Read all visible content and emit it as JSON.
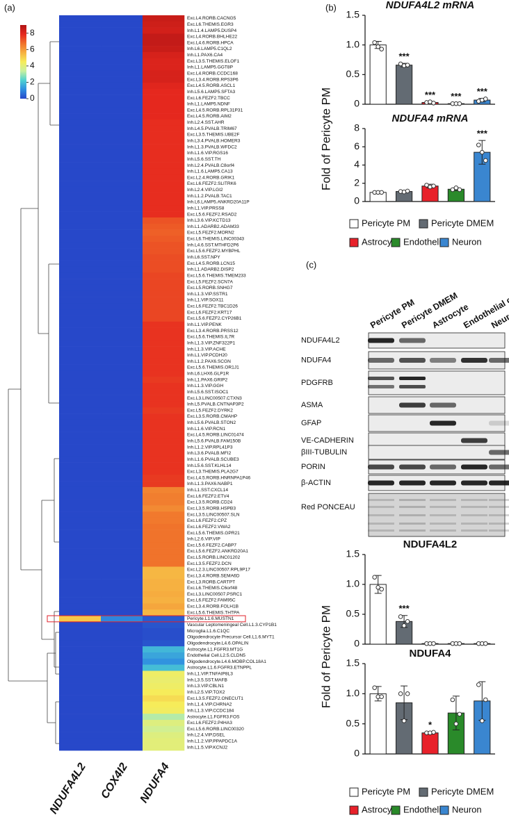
{
  "panels": [
    "(a)",
    "(b)",
    "(c)"
  ],
  "chart_data": [
    {
      "type": "heatmap",
      "categories": [
        "Exc.L4.RORB.CACNG5",
        "Exc.L6.THEMIS.EGR3",
        "Inh.L1.4.LAMP5.DUSP4",
        "Exc.L4.RORB.BHLHE22",
        "Exc.L4.6.RORB.HPCA",
        "Inh.L6.LAMP5.C1QL2",
        "Inh.L1.PAX6.CA4",
        "Exc.L3.5.THEMIS.ELOF1",
        "Inh.L1.LAMP5.GGT8P",
        "Exc.L4.RORB.CCDC168",
        "Exc.L3.4.RORB.RPS3P6",
        "Exc.L4.5.RORB.ASCL1",
        "Inh.L5.6.LAMP5.SFTA3",
        "Exc.L6.FEZF2.TBCC",
        "Inh.L1.LAMP5.NDNF",
        "Exc.L4.5.RORB.RPL31P31",
        "Exc.L4.5.RORB.AIM2",
        "Inh.L2.4.SST.AHR",
        "Inh.L4.5.PVALB.TRIM67",
        "Exc.L3.5.THEMIS.UBE2F",
        "Inh.L3.4.PVALB.HOMER3",
        "Inh.L1.3.PVALB.WFDC2",
        "Inh.L1.6.VIP.RGS16",
        "Inh.L5.6.SST.TH",
        "Inh.L2.4.PVALB.C8orf4",
        "Inh.L1.6.LAMP5.CA13",
        "Exc.L2.4.RORB.GRIK1",
        "Exc.L6.FEZF2.SLITRK6",
        "Inh.L2.4.VIP.LGI2",
        "Inh.L1.2.PVALB.TAC1",
        "Inh.L6.LAMP5.ANKRD20A11P",
        "Inh.L1.VIP.PRSS8",
        "Exc.L5.6.FEZF2.RSAD2",
        "Inh.L3.6.VIP.KCTD13",
        "Inh.L1.ADARB2.ADAM33",
        "Exc.L5.FEZF2.MORN2",
        "Exc.L6.THEMIS.LINC00343",
        "Inh.L4.6.SST.MTHFD2P6",
        "Exc.L5.6.FEZF2.MYBPHL",
        "Inh.L6.SST.NPY",
        "Exc.L4.5.RORB.LCN15",
        "Inh.L1.ADARB2.DISP2",
        "Exc.L5.6.THEMIS.TMEM233",
        "Exc.L5.FEZF2.SCN7A",
        "Exc.L5.RORB.SNHG7",
        "Inh.L1.3.VIP.SSTR1",
        "Inh.L1.VIP.SOX11",
        "Exc.L6.FEZF2.TBC1D26",
        "Exc.L6.FEZF2.KRT17",
        "Exc.L5.6.FEZF2.CYP26B1",
        "Inh.L1.VIP.PENK",
        "Exc.L3.4.RORB.PRSS12",
        "Exc.L5.6.THEMIS.IL7R",
        "Inh.L1.3.VIP.ZNF322P1",
        "Inh.L1.3.VIP.ACHE",
        "Inh.L1.VIP.PCDH20",
        "Inh.L1.2.PAX6.SCGN",
        "Exc.L5.6.THEMIS.OR1J1",
        "Inh.L6.LHX6.GLP1R",
        "Inh.L1.PAX6.GRIP2",
        "Inh.L1.3.VIP.GGH",
        "Inh.L5.6.SST.ISOC1",
        "Exc.L3.LINC00507.CTXN3",
        "Inh.L5.PVALB.CNTNAP3P2",
        "Exc.L5.FEZF2.DYRK2",
        "Exc.L3.5.RORB.CMAHP",
        "Inh.L5.6.PVALB.STON2",
        "Inh.L1.6.VIP.RCN1",
        "Exc.L4.5.RORB.LINC01474",
        "Inh.L5.6.PVALB.FAM150B",
        "Inh.L1.2.VIP.RPL41P3",
        "Inh.L3.6.PVALB.MFI2",
        "Inh.L1.6.PVALB.SCUBE3",
        "Inh.L5.6.SST.KLHL14",
        "Exc.L3.THEMIS.PLA2G7",
        "Exc.L4.5.RORB.HNRNPA1P46",
        "Inh.L1.3.PAX6.NABP1",
        "Inh.L1.SST.CXCL14",
        "Exc.L6.FEZF2.ETV4",
        "Exc.L3.5.RORB.CD24",
        "Exc.L3.5.RORB.HSPB3",
        "Exc.L3.5.LINC00507.SLN",
        "Exc.L6.FEZF2.CPZ",
        "Exc.L6.FEZF2.VWA2",
        "Exc.L5.6.THEMIS.GPR21",
        "Inh.L2.6.VIP.VIP",
        "Exc.L5.6.FEZF2.CABP7",
        "Exc.L5.6.FEZF2.ANKRD20A1",
        "Exc.L5.RORB.LINC01202",
        "Exc.L3.5.FEZF2.DCN",
        "Exc.L2.3.LINC00507.RPL9P17",
        "Exc.L3.4.RORB.SEMA6D",
        "Exc.L3.RORB.CARTPT",
        "Exc.L6.THEMIS.C6orf48",
        "Exc.L3.LINC00507.PSRC1",
        "Exc.L6.FEZF2.FAM95C",
        "Exc.L3.4.RORB.FOLH1B",
        "Exc.L5.6.THEMIS.THTPA",
        "Pericyte.L1.6.MUSTN1",
        "Vascular Leptomeningeal Cell.L1.3.CYP1B1",
        "Microglia.L1.6.C1QC",
        "Oligodendrocyte Precursor Cell.L1.6.MYT1",
        "Oligodendrocyte.L4.6.OPALIN",
        "Astrocyte.L1.FGFR3.MT1G",
        "Endothelial Cell.L2.5.CLDN5",
        "Oligodendrocyte.L4.6.MOBP.COL18A1",
        "Astrocyte.L1.6.FGFR3.ETNPPL",
        "Inh.L1.VIP.TNFAIP8L3",
        "Inh.L3.5.SST.MAFB",
        "Inh.L3.VIP.CBLN1",
        "Inh.L2.5.VIP.TOX2",
        "Exc.L3.5.FEZF2.ONECUT1",
        "Inh.L1.4.VIP.CHRNA2",
        "Inh.L1.3.VIP.CCDC184",
        "Astrocyte.L1.FGFR3.FOS",
        "Exc.L6.FEZF2.P4HA3",
        "Exc.L5.6.RORB.LINC00320",
        "Inh.L2.4.VIP.DSEL",
        "Inh.L1.2.VIP.PPAPDC1A",
        "Inh.L1.5.VIP.KCNJ2"
      ],
      "series": [
        {
          "name": "NDUFA4L2",
          "values": [
            0,
            0,
            0,
            0,
            0,
            0,
            0,
            0,
            0,
            0,
            0,
            0,
            0,
            0,
            0,
            0,
            0,
            0,
            0,
            0,
            0,
            0,
            0,
            0,
            0,
            0,
            0,
            0,
            0,
            0,
            0,
            0,
            0,
            0,
            0,
            0,
            0,
            0,
            0,
            0,
            0,
            0,
            0,
            0,
            0,
            0,
            0,
            0,
            0,
            0,
            0,
            0,
            0,
            0,
            0,
            0,
            0,
            0,
            0,
            0,
            0,
            0,
            0,
            0,
            0,
            0,
            0,
            0,
            0,
            0,
            0,
            0,
            0,
            0,
            0,
            0,
            0,
            0,
            0,
            0,
            0,
            0,
            0,
            0,
            0,
            0,
            0,
            0,
            0,
            0,
            0,
            0,
            0,
            0,
            0,
            0,
            0,
            0,
            5.2,
            0,
            0,
            0,
            0,
            0,
            0,
            0,
            0,
            0,
            0,
            0,
            0,
            0,
            0,
            0,
            0,
            0,
            0,
            0,
            0,
            0
          ]
        },
        {
          "name": "COX4I2",
          "values": [
            0,
            0,
            0,
            0,
            0,
            0,
            0,
            0,
            0,
            0,
            0,
            0,
            0,
            0,
            0,
            0,
            0,
            0,
            0,
            0,
            0,
            0,
            0,
            0,
            0,
            0,
            0,
            0,
            0,
            0,
            0,
            0,
            0,
            0,
            0,
            0,
            0,
            0,
            0,
            0,
            0,
            0,
            0,
            0,
            0,
            0,
            0,
            0,
            0,
            0,
            0,
            0,
            0,
            0,
            0,
            0,
            0,
            0,
            0,
            0,
            0,
            0,
            0,
            0,
            0,
            0,
            0,
            0,
            0,
            0,
            0,
            0,
            0,
            0,
            0,
            0,
            0,
            0,
            0,
            0,
            0,
            0,
            0,
            0,
            0,
            0,
            0,
            0,
            0,
            0,
            0,
            0,
            0,
            0,
            0,
            0,
            0,
            0,
            1.0,
            0,
            0,
            0,
            0,
            0,
            0,
            0,
            0,
            0,
            0,
            0,
            0,
            0,
            0,
            0,
            0,
            0,
            0,
            0,
            0,
            0
          ]
        },
        {
          "name": "NDUFA4",
          "values": [
            8.5,
            8.4,
            8.3,
            8.6,
            8.6,
            8.5,
            8.2,
            8.1,
            8.1,
            8.2,
            8.2,
            8.0,
            7.9,
            7.9,
            7.9,
            7.9,
            7.9,
            7.8,
            7.8,
            7.8,
            7.8,
            7.8,
            7.8,
            7.8,
            7.8,
            7.8,
            7.8,
            7.8,
            7.8,
            7.8,
            7.8,
            7.8,
            7.8,
            7.2,
            7.1,
            7.0,
            7.1,
            7.2,
            7.2,
            7.3,
            7.3,
            7.3,
            7.4,
            7.4,
            7.4,
            7.4,
            7.4,
            7.4,
            7.4,
            7.4,
            7.7,
            7.7,
            7.7,
            7.7,
            7.7,
            7.7,
            7.7,
            7.7,
            7.7,
            7.6,
            7.7,
            7.7,
            7.7,
            7.7,
            7.6,
            7.7,
            7.7,
            7.7,
            7.7,
            7.7,
            7.7,
            7.7,
            7.7,
            7.7,
            7.7,
            7.6,
            7.6,
            6.4,
            6.5,
            6.5,
            6.3,
            6.6,
            6.6,
            6.7,
            6.7,
            6.7,
            6.7,
            6.7,
            6.7,
            6.7,
            5.5,
            5.5,
            5.6,
            5.6,
            5.7,
            5.6,
            5.8,
            5.5,
            0.3,
            0.2,
            0.1,
            0.1,
            0.2,
            1.8,
            1.5,
            1.2,
            1.9,
            4.3,
            4.2,
            4.3,
            4.5,
            4.8,
            4.5,
            4.4,
            3.2,
            3.9,
            3.6,
            3.9,
            4.0,
            4.0
          ]
        }
      ],
      "zlim": [
        0,
        9
      ],
      "zticks": [
        0,
        2,
        4,
        6,
        8
      ],
      "colorscale": [
        "#2748c9",
        "#2f8fe0",
        "#4fd2d2",
        "#c8f0a0",
        "#f6ec5a",
        "#f6b040",
        "#f0702a",
        "#e6281e",
        "#b01414"
      ]
    },
    {
      "type": "bar",
      "title": "NDUFA4L2 mRNA",
      "ylabel": "Fold of Pericyte PM",
      "values": [
        1.0,
        0.66,
        0.03,
        0.01,
        0.07
      ],
      "errors": [
        0.06,
        0.03,
        0.01,
        0.005,
        0.03
      ],
      "points": [
        [
          1.04,
          0.97,
          0.93
        ],
        [
          0.68,
          0.65,
          0.66
        ],
        [
          0.03,
          0.04,
          0.02
        ],
        [
          0.01,
          0.01,
          0.01
        ],
        [
          0.05,
          0.07,
          0.09
        ]
      ],
      "significance": [
        null,
        "***",
        "***",
        "***",
        "***"
      ],
      "colors": [
        "#ffffff",
        "#636b73",
        "#e8212a",
        "#2a8a2a",
        "#3a86d0"
      ],
      "ylim": [
        0,
        1.5
      ],
      "yticks": [
        0,
        0.5,
        {
          "value": 1,
          "label": "1.0"
        },
        1.5
      ]
    },
    {
      "type": "bar",
      "title": "NDUFA4 mRNA",
      "categories": [
        "Pericyte PM",
        "Pericyte DMEM",
        "Astrocyte",
        "Endothelial",
        "Neuron"
      ],
      "values": [
        1.0,
        1.1,
        1.7,
        1.35,
        5.4
      ],
      "errors": [
        0.05,
        0.1,
        0.2,
        0.15,
        1.3
      ],
      "points": [
        [
          1.0,
          1.0,
          1.0
        ],
        [
          1.1,
          1.05,
          1.15
        ],
        [
          1.8,
          1.6,
          1.7
        ],
        [
          1.3,
          1.5,
          1.3
        ],
        [
          6.2,
          5.4,
          4.5
        ]
      ],
      "significance": [
        null,
        null,
        null,
        null,
        "***"
      ],
      "colors": [
        "#ffffff",
        "#636b73",
        "#e8212a",
        "#2a8a2a",
        "#3a86d0"
      ],
      "ylim": [
        0,
        8
      ],
      "yticks": [
        0,
        2,
        4,
        6,
        8
      ]
    },
    {
      "type": "bar",
      "title": "NDUFA4L2",
      "ylabel": "Fold of Pericyte PM",
      "values": [
        1.0,
        0.38,
        0.01,
        0.01,
        0.01
      ],
      "errors": [
        0.15,
        0.1,
        0.005,
        0.005,
        0.005
      ],
      "points": [
        [
          1.12,
          0.95,
          0.92
        ],
        [
          0.46,
          0.31,
          0.38
        ],
        [
          0.01,
          0.01,
          0.01
        ],
        [
          0.01,
          0.01,
          0.01
        ],
        [
          0.01,
          0.01,
          0.01
        ]
      ],
      "significance": [
        null,
        "***",
        null,
        null,
        null
      ],
      "colors": [
        "#ffffff",
        "#636b73",
        "#e8212a",
        "#2a8a2a",
        "#3a86d0"
      ],
      "ylim": [
        0,
        1.5
      ],
      "yticks": [
        0,
        0.5,
        {
          "value": 1,
          "label": "1.0"
        },
        1.5
      ]
    },
    {
      "type": "bar",
      "title": "NDUFA4",
      "categories": [
        "Pericyte PM",
        "Pericyte DMEM",
        "Astrocyte",
        "Endothelial",
        "Neuron"
      ],
      "values": [
        1.0,
        0.85,
        0.35,
        0.68,
        0.88
      ],
      "errors": [
        0.12,
        0.28,
        0.02,
        0.28,
        0.32
      ],
      "points": [
        [
          1.1,
          0.95,
          0.95
        ],
        [
          1.0,
          0.55,
          1.0
        ],
        [
          0.35,
          0.35,
          0.36
        ],
        [
          0.9,
          0.5,
          0.66
        ],
        [
          1.15,
          0.55,
          0.9
        ]
      ],
      "significance": [
        null,
        null,
        "*",
        null,
        null
      ],
      "colors": [
        "#ffffff",
        "#636b73",
        "#e8212a",
        "#2a8a2a",
        "#3a86d0"
      ],
      "ylim": [
        0,
        1.5
      ],
      "yticks": [
        0,
        0.5,
        {
          "value": 1,
          "label": "1.0"
        },
        1.5
      ]
    }
  ],
  "blot": {
    "lanes": [
      "Pericyte PM",
      "Pericyte DMEM",
      "Astrocyte",
      "Endothelial cell",
      "Neuron"
    ],
    "rows": [
      "NDUFA4L2",
      "NDUFA4",
      "PDGFRB",
      "ASMA",
      "GFAP",
      "VE-CADHERIN",
      "βIII-TUBULIN",
      "PORIN",
      "β-ACTIN",
      "Red PONCEAU"
    ]
  }
}
